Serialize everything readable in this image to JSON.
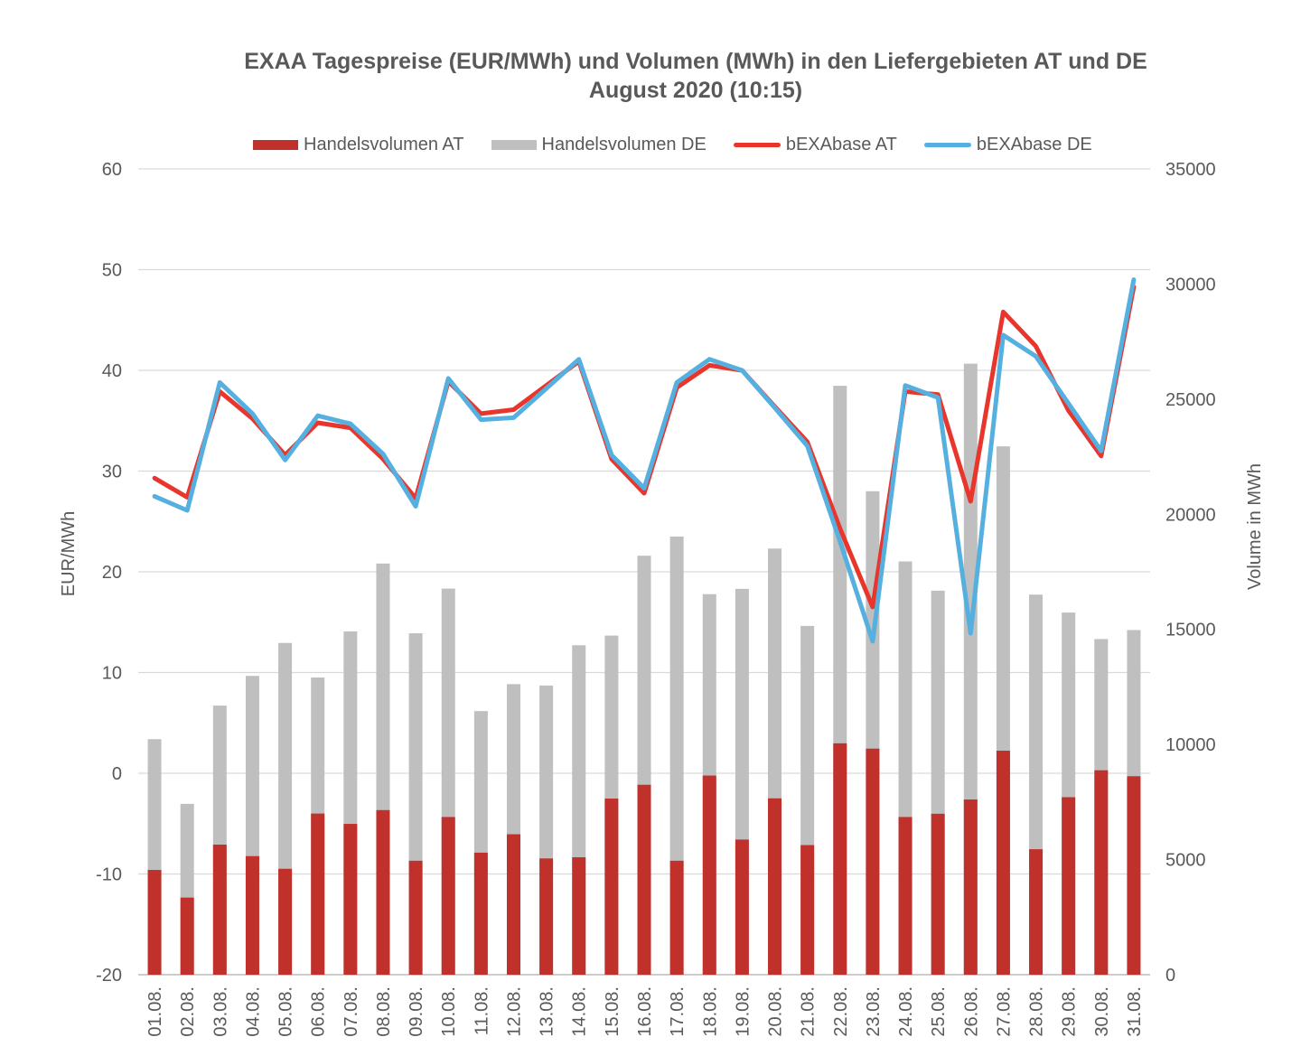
{
  "chart_data": {
    "type": "bar",
    "title": "EXAA Tagespreise (EUR/MWh) und Volumen (MWh) in den Liefergebieten AT und DE",
    "subtitle": "August 2020 (10:15)",
    "ylabel": "EUR/MWh",
    "y2label": "Volume in MWh",
    "ylim": [
      -20,
      60
    ],
    "y2lim": [
      0,
      35000
    ],
    "y_ticks": [
      "60",
      "50",
      "40",
      "30",
      "20",
      "10",
      "0",
      "-10",
      "-20"
    ],
    "y_tick_values": [
      60,
      50,
      40,
      30,
      20,
      10,
      0,
      -10,
      -20
    ],
    "y2_ticks": [
      "35000",
      "30000",
      "25000",
      "20000",
      "15000",
      "10000",
      "5000",
      "0"
    ],
    "y2_tick_values": [
      35000,
      30000,
      25000,
      20000,
      15000,
      10000,
      5000,
      0
    ],
    "grid": true,
    "legend_position": "top",
    "categories": [
      "01.08.",
      "02.08.",
      "03.08.",
      "04.08.",
      "05.08.",
      "06.08.",
      "07.08.",
      "08.08.",
      "09.08.",
      "10.08.",
      "11.08.",
      "12.08.",
      "13.08.",
      "14.08.",
      "15.08.",
      "16.08.",
      "17.08.",
      "18.08.",
      "19.08.",
      "20.08.",
      "21.08.",
      "22.08.",
      "23.08.",
      "24.08.",
      "25.08.",
      "26.08.",
      "27.08.",
      "28.08.",
      "29.08.",
      "30.08.",
      "31.08."
    ],
    "series": [
      {
        "name": "Handelsvolumen AT",
        "type": "bar",
        "axis": "right",
        "color": "#c0312b",
        "values": [
          4550,
          3350,
          5650,
          5150,
          4600,
          7000,
          6550,
          7150,
          4950,
          6850,
          5300,
          6100,
          5050,
          5100,
          7650,
          8250,
          4950,
          8650,
          5870,
          7660,
          5630,
          10050,
          9820,
          6850,
          6990,
          7610,
          9730,
          5450,
          7710,
          8880,
          8620
        ]
      },
      {
        "name": "Handelsvolumen DE",
        "type": "bar",
        "axis": "right",
        "color": "#bfbfbf",
        "values": [
          10230,
          7420,
          11690,
          12980,
          14410,
          12910,
          14910,
          17860,
          14830,
          16770,
          11450,
          12620,
          12560,
          14310,
          14730,
          18200,
          19030,
          16530,
          16760,
          18510,
          15150,
          25580,
          21000,
          17950,
          16680,
          26540,
          22950,
          16510,
          15730,
          14580,
          14970
        ]
      },
      {
        "name": "bEXAbase AT",
        "type": "line",
        "axis": "left",
        "color": "#e8362d",
        "values": [
          29.3,
          27.4,
          37.9,
          35.2,
          31.6,
          34.8,
          34.3,
          31.2,
          27.3,
          38.9,
          35.7,
          36.1,
          38.5,
          40.9,
          31.2,
          27.8,
          38.3,
          40.5,
          40.0,
          36.4,
          32.9,
          24.3,
          16.5,
          37.9,
          37.6,
          27.0,
          45.8,
          42.4,
          36.0,
          31.5,
          48.3
        ]
      },
      {
        "name": "bEXAbase DE",
        "type": "line",
        "axis": "left",
        "color": "#55b0e0",
        "values": [
          27.5,
          26.1,
          38.8,
          35.7,
          31.1,
          35.5,
          34.7,
          31.7,
          26.5,
          39.2,
          35.1,
          35.3,
          38.2,
          41.1,
          31.6,
          28.3,
          38.8,
          41.1,
          40.0,
          36.3,
          32.5,
          23.0,
          13.1,
          38.5,
          37.3,
          13.9,
          43.5,
          41.4,
          36.7,
          32.0,
          49.0
        ]
      }
    ]
  }
}
